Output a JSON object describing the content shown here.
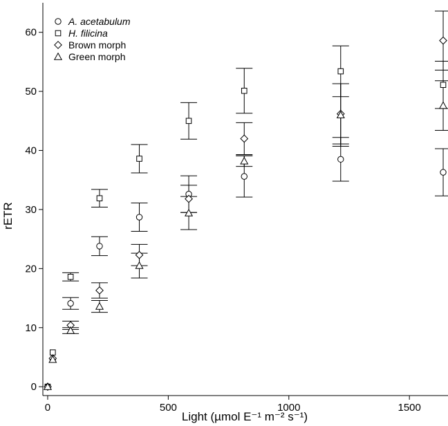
{
  "chart_data": {
    "type": "scatter",
    "xlabel": "Light (µmol E⁻¹ m⁻² s⁻¹)",
    "ylabel": "rETR",
    "xlim": [
      -20,
      1660
    ],
    "ylim": [
      -1.5,
      65
    ],
    "xticks": [
      0,
      500,
      1000,
      1500
    ],
    "yticks": [
      0,
      10,
      20,
      30,
      40,
      50,
      60
    ],
    "error_bars": true,
    "grid": false,
    "legend_position": "top-left",
    "x": [
      0,
      21,
      95,
      215,
      380,
      585,
      815,
      1215,
      1640
    ],
    "series": [
      {
        "name": "A. acetabulum",
        "marker": "circle",
        "italic": true,
        "values": [
          0,
          4.7,
          14.1,
          23.8,
          28.7,
          32.6,
          35.6,
          38.5,
          36.3
        ],
        "errors": [
          0.3,
          0.4,
          1.0,
          1.6,
          2.4,
          3.1,
          3.5,
          3.7,
          4.0
        ]
      },
      {
        "name": "H. filicina",
        "marker": "square",
        "italic": true,
        "values": [
          0,
          5.8,
          18.6,
          31.9,
          38.6,
          45.0,
          50.1,
          53.4,
          51.1
        ],
        "errors": [
          0.3,
          0.4,
          0.7,
          1.5,
          2.4,
          3.1,
          3.8,
          4.3,
          4.0
        ]
      },
      {
        "name": "Brown morph",
        "marker": "diamond",
        "italic": false,
        "values": [
          0,
          4.8,
          10.4,
          16.3,
          22.3,
          31.8,
          42.0,
          46.2,
          58.6
        ],
        "errors": [
          0.3,
          0.4,
          0.7,
          1.3,
          1.8,
          2.3,
          2.7,
          5.1,
          5.0
        ]
      },
      {
        "name": "Green morph",
        "marker": "triangle",
        "italic": false,
        "values": [
          0,
          4.6,
          9.5,
          13.6,
          20.5,
          29.4,
          38.2,
          46.0,
          47.6
        ],
        "errors": [
          0.3,
          0.4,
          0.5,
          1.0,
          2.1,
          2.8,
          0.9,
          5.3,
          4.2
        ]
      }
    ]
  }
}
